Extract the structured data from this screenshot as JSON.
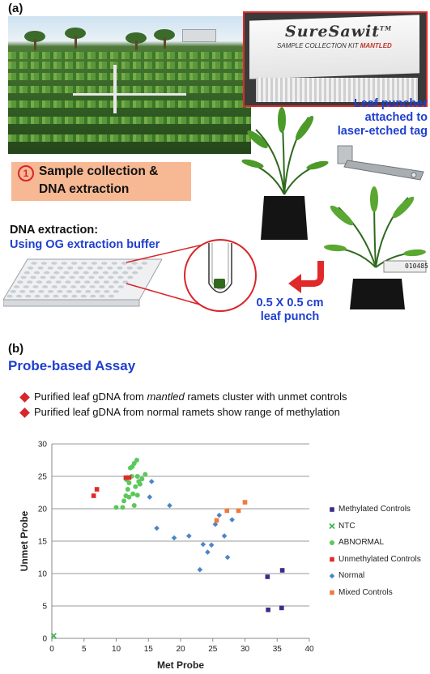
{
  "panel_a": {
    "label": "(a)",
    "kit_logo": "SureSawit",
    "kit_logo_tm": "TM",
    "kit_subtitle": "SAMPLE COLLECTION KIT",
    "kit_subtitle_emph": "MANTLED",
    "leaf_puncher_lines": [
      "Leaf puncher",
      "attached to",
      "laser-etched tag"
    ],
    "step_number": "1",
    "step_text_lines": [
      "Sample collection &",
      "DNA extraction"
    ],
    "dna_extraction_title": "DNA extraction:",
    "dna_extraction_subtitle": "Using OG extraction buffer",
    "punch_lines": [
      "0.5 X 0.5 cm",
      "leaf punch"
    ],
    "tag_number": "010485"
  },
  "panel_b": {
    "label": "(b)",
    "title": "Probe-based Assay",
    "bullets": [
      {
        "prefix": "Purified leaf gDNA from ",
        "emph": "mantled",
        "suffix": " ramets cluster with unmet controls"
      },
      {
        "prefix": "Purified leaf gDNA from normal ramets show range of methylation",
        "emph": "",
        "suffix": ""
      }
    ],
    "colors": {
      "accent_red": "#d8262a",
      "title_blue": "#1f3fcf"
    }
  },
  "chart_data": {
    "type": "scatter",
    "xlabel": "Met Probe",
    "ylabel": "Unmet Probe",
    "xlim": [
      0,
      40
    ],
    "ylim": [
      0,
      30
    ],
    "xticks": [
      0,
      5,
      10,
      15,
      20,
      25,
      30,
      35,
      40
    ],
    "yticks": [
      0,
      5,
      10,
      15,
      20,
      25,
      30
    ],
    "grid": "horizontal",
    "legend_position": "right",
    "series": [
      {
        "name": "Methylated Controls",
        "marker": "square",
        "color": "#3d2a8a",
        "points": [
          [
            33.5,
            9.5
          ],
          [
            35.8,
            10.5
          ],
          [
            33.6,
            4.4
          ],
          [
            35.7,
            4.7
          ]
        ]
      },
      {
        "name": "NTC",
        "marker": "cross",
        "color": "#36b24a",
        "points": [
          [
            0.3,
            0.4
          ]
        ]
      },
      {
        "name": "ABNORMAL",
        "marker": "circle",
        "color": "#5cc85c",
        "points": [
          [
            10.0,
            20.2
          ],
          [
            11.0,
            20.2
          ],
          [
            11.5,
            22.0
          ],
          [
            11.8,
            23.0
          ],
          [
            12.0,
            24.0
          ],
          [
            12.4,
            25.0
          ],
          [
            12.5,
            26.5
          ],
          [
            12.8,
            27.0
          ],
          [
            13.2,
            27.5
          ],
          [
            13.3,
            25.0
          ],
          [
            13.5,
            24.2
          ],
          [
            14.0,
            24.6
          ],
          [
            14.5,
            25.3
          ],
          [
            12.0,
            21.8
          ],
          [
            12.6,
            22.3
          ],
          [
            13.0,
            23.4
          ],
          [
            11.6,
            24.5
          ],
          [
            12.2,
            26.3
          ],
          [
            13.7,
            23.8
          ],
          [
            11.2,
            21.2
          ],
          [
            12.8,
            20.5
          ],
          [
            13.3,
            22.1
          ]
        ]
      },
      {
        "name": "Unmethylated Controls",
        "marker": "square",
        "color": "#e02a2a",
        "points": [
          [
            6.5,
            22.0
          ],
          [
            7.0,
            23.0
          ],
          [
            11.5,
            24.8
          ],
          [
            12.0,
            24.8
          ]
        ]
      },
      {
        "name": "Normal",
        "marker": "diamond",
        "color": "#4a86c6",
        "points": [
          [
            15.5,
            24.2
          ],
          [
            15.2,
            21.8
          ],
          [
            16.3,
            17.0
          ],
          [
            18.3,
            20.5
          ],
          [
            19.0,
            15.5
          ],
          [
            21.3,
            15.8
          ],
          [
            23.0,
            10.6
          ],
          [
            23.5,
            14.5
          ],
          [
            24.2,
            13.3
          ],
          [
            24.8,
            14.4
          ],
          [
            25.4,
            17.6
          ],
          [
            26.0,
            19.0
          ],
          [
            26.8,
            15.8
          ],
          [
            27.3,
            12.5
          ],
          [
            28.0,
            18.3
          ]
        ]
      },
      {
        "name": "Mixed Controls",
        "marker": "square",
        "color": "#f07a3c",
        "points": [
          [
            25.6,
            18.2
          ],
          [
            27.2,
            19.7
          ],
          [
            29.0,
            19.7
          ],
          [
            30.0,
            21.0
          ]
        ]
      }
    ]
  }
}
